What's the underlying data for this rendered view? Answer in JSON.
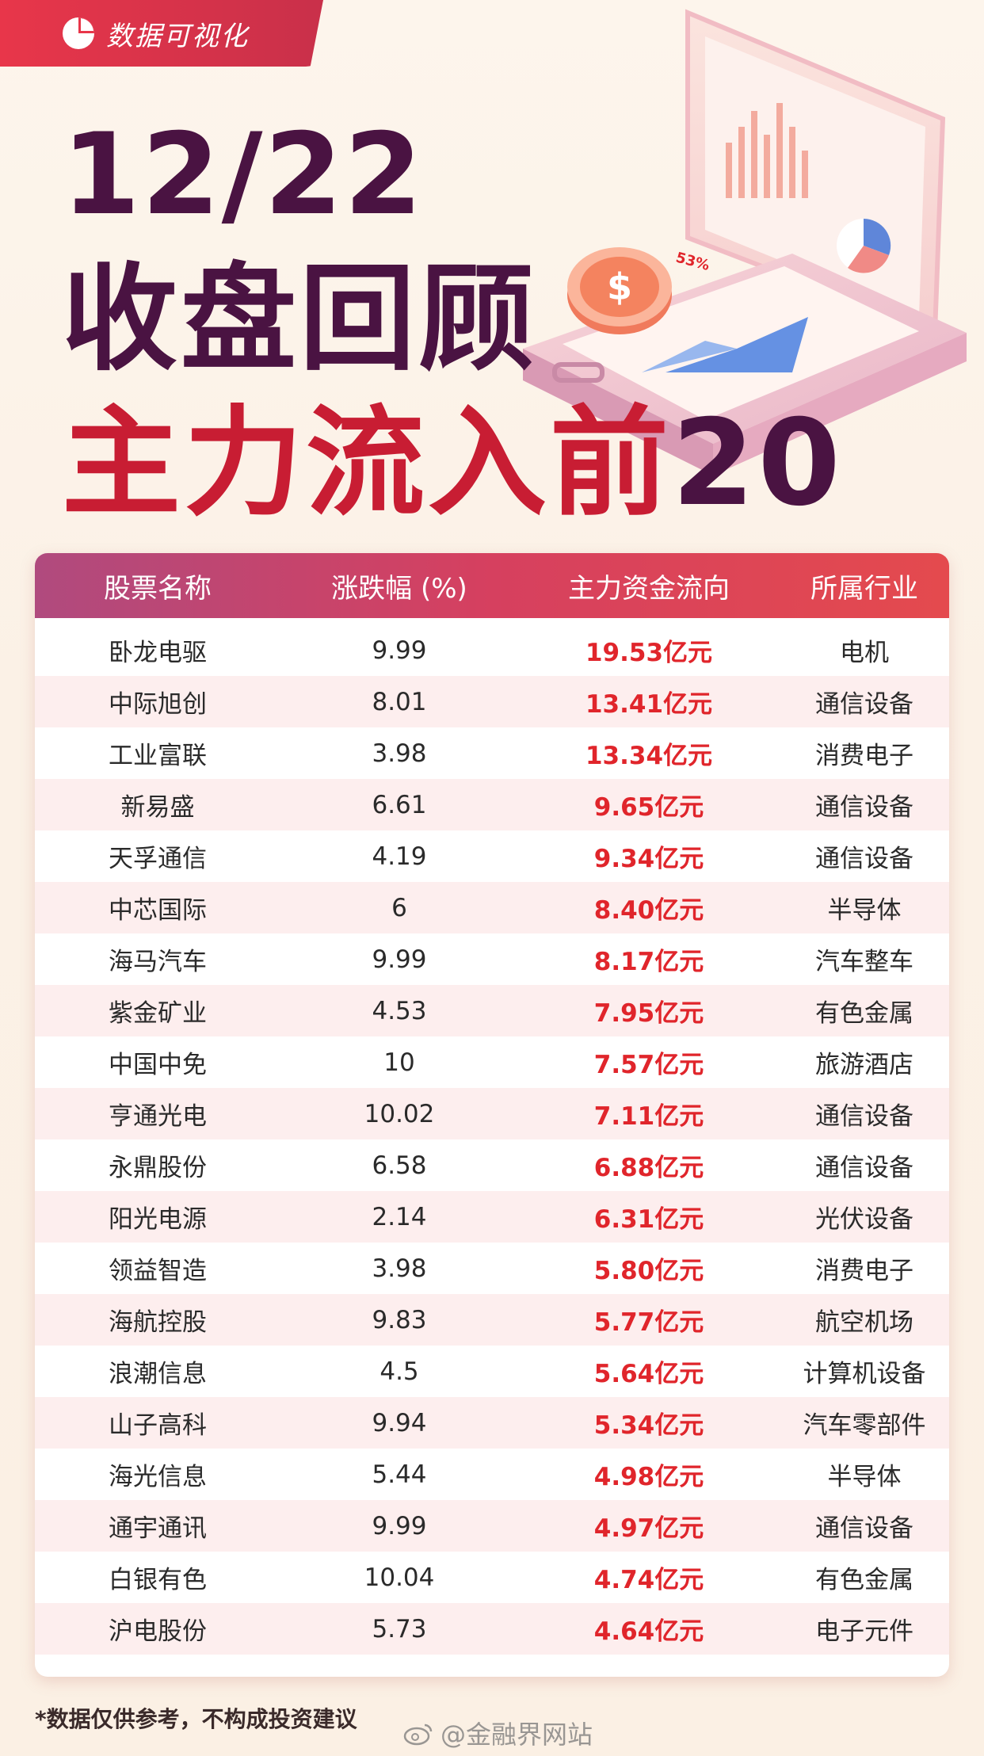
{
  "badge": {
    "label": "数据可视化",
    "color": "#e8364a"
  },
  "title": {
    "date": "12/22",
    "main": "收盘回顾",
    "sub_prefix": "主力流入前",
    "sub_number": "20"
  },
  "illustration": {
    "percent_label": "53%"
  },
  "table": {
    "headers": {
      "name": "股票名称",
      "change": "涨跌幅 (%)",
      "flow": "主力资金流向",
      "industry": "所属行业"
    },
    "rows": [
      {
        "name": "卧龙电驱",
        "change": "9.99",
        "flow": "19.53亿元",
        "industry": "电机"
      },
      {
        "name": "中际旭创",
        "change": "8.01",
        "flow": "13.41亿元",
        "industry": "通信设备"
      },
      {
        "name": "工业富联",
        "change": "3.98",
        "flow": "13.34亿元",
        "industry": "消费电子"
      },
      {
        "name": "新易盛",
        "change": "6.61",
        "flow": "9.65亿元",
        "industry": "通信设备"
      },
      {
        "name": "天孚通信",
        "change": "4.19",
        "flow": "9.34亿元",
        "industry": "通信设备"
      },
      {
        "name": "中芯国际",
        "change": "6",
        "flow": "8.40亿元",
        "industry": "半导体"
      },
      {
        "name": "海马汽车",
        "change": "9.99",
        "flow": "8.17亿元",
        "industry": "汽车整车"
      },
      {
        "name": "紫金矿业",
        "change": "4.53",
        "flow": "7.95亿元",
        "industry": "有色金属"
      },
      {
        "name": "中国中免",
        "change": "10",
        "flow": "7.57亿元",
        "industry": "旅游酒店"
      },
      {
        "name": "亨通光电",
        "change": "10.02",
        "flow": "7.11亿元",
        "industry": "通信设备"
      },
      {
        "name": "永鼎股份",
        "change": "6.58",
        "flow": "6.88亿元",
        "industry": "通信设备"
      },
      {
        "name": "阳光电源",
        "change": "2.14",
        "flow": "6.31亿元",
        "industry": "光伏设备"
      },
      {
        "name": "领益智造",
        "change": "3.98",
        "flow": "5.80亿元",
        "industry": "消费电子"
      },
      {
        "name": "海航控股",
        "change": "9.83",
        "flow": "5.77亿元",
        "industry": "航空机场"
      },
      {
        "name": "浪潮信息",
        "change": "4.5",
        "flow": "5.64亿元",
        "industry": "计算机设备"
      },
      {
        "name": "山子高科",
        "change": "9.94",
        "flow": "5.34亿元",
        "industry": "汽车零部件"
      },
      {
        "name": "海光信息",
        "change": "5.44",
        "flow": "4.98亿元",
        "industry": "半导体"
      },
      {
        "name": "通宇通讯",
        "change": "9.99",
        "flow": "4.97亿元",
        "industry": "通信设备"
      },
      {
        "name": "白银有色",
        "change": "10.04",
        "flow": "4.74亿元",
        "industry": "有色金属"
      },
      {
        "name": "沪电股份",
        "change": "5.73",
        "flow": "4.64亿元",
        "industry": "电子元件"
      }
    ]
  },
  "footnote": "*数据仅供参考，不构成投资建议",
  "watermark": "@金融界网站"
}
